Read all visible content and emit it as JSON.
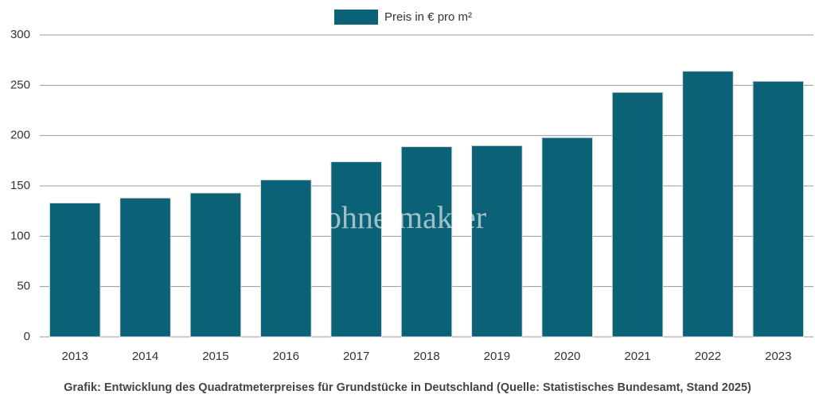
{
  "chart_data": {
    "type": "bar",
    "legend": "Preis in € pro m²",
    "caption": "Grafik: Entwicklung des Quadratmeterpreises für Grundstücke in Deutschland (Quelle: Statistisches Bundesamt, Stand 2025)",
    "watermark": "ohne-makler",
    "categories": [
      "2013",
      "2014",
      "2015",
      "2016",
      "2017",
      "2018",
      "2019",
      "2020",
      "2021",
      "2022",
      "2023"
    ],
    "values": [
      133,
      138,
      143,
      156,
      174,
      189,
      190,
      198,
      243,
      264,
      254
    ],
    "color": "#0b6276",
    "ylim": [
      0,
      300
    ],
    "yticks": [
      0,
      50,
      100,
      150,
      200,
      250,
      300
    ],
    "grid": true
  }
}
